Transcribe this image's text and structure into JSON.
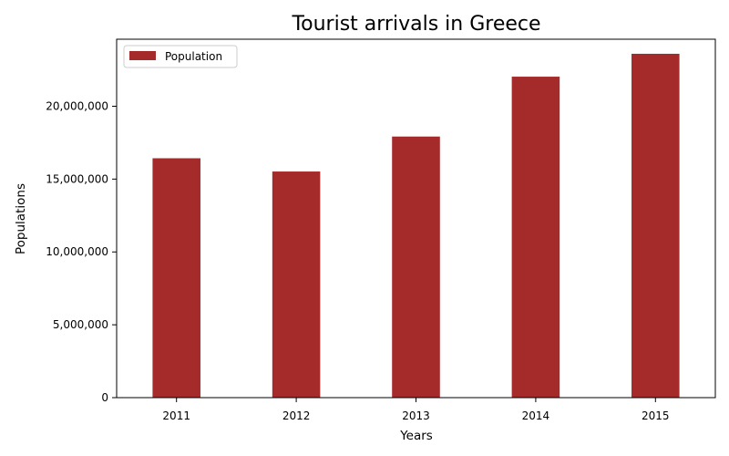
{
  "chart_data": {
    "type": "bar",
    "title": "Tourist arrivals in Greece",
    "xlabel": "Years",
    "ylabel": "Populations",
    "categories": [
      "2011",
      "2012",
      "2013",
      "2014",
      "2015"
    ],
    "series": [
      {
        "name": "Population",
        "color": "#a52a2a",
        "values": [
          16430000,
          15520000,
          17920000,
          22030000,
          23600000
        ]
      }
    ],
    "ylim": [
      0,
      24600000
    ],
    "yticks": [
      0,
      5000000,
      10000000,
      15000000,
      20000000
    ],
    "ytick_labels": [
      "0",
      "5,000,000",
      "10,000,000",
      "15,000,000",
      "20,000,000"
    ],
    "grid": false,
    "legend_position": "top-left"
  }
}
